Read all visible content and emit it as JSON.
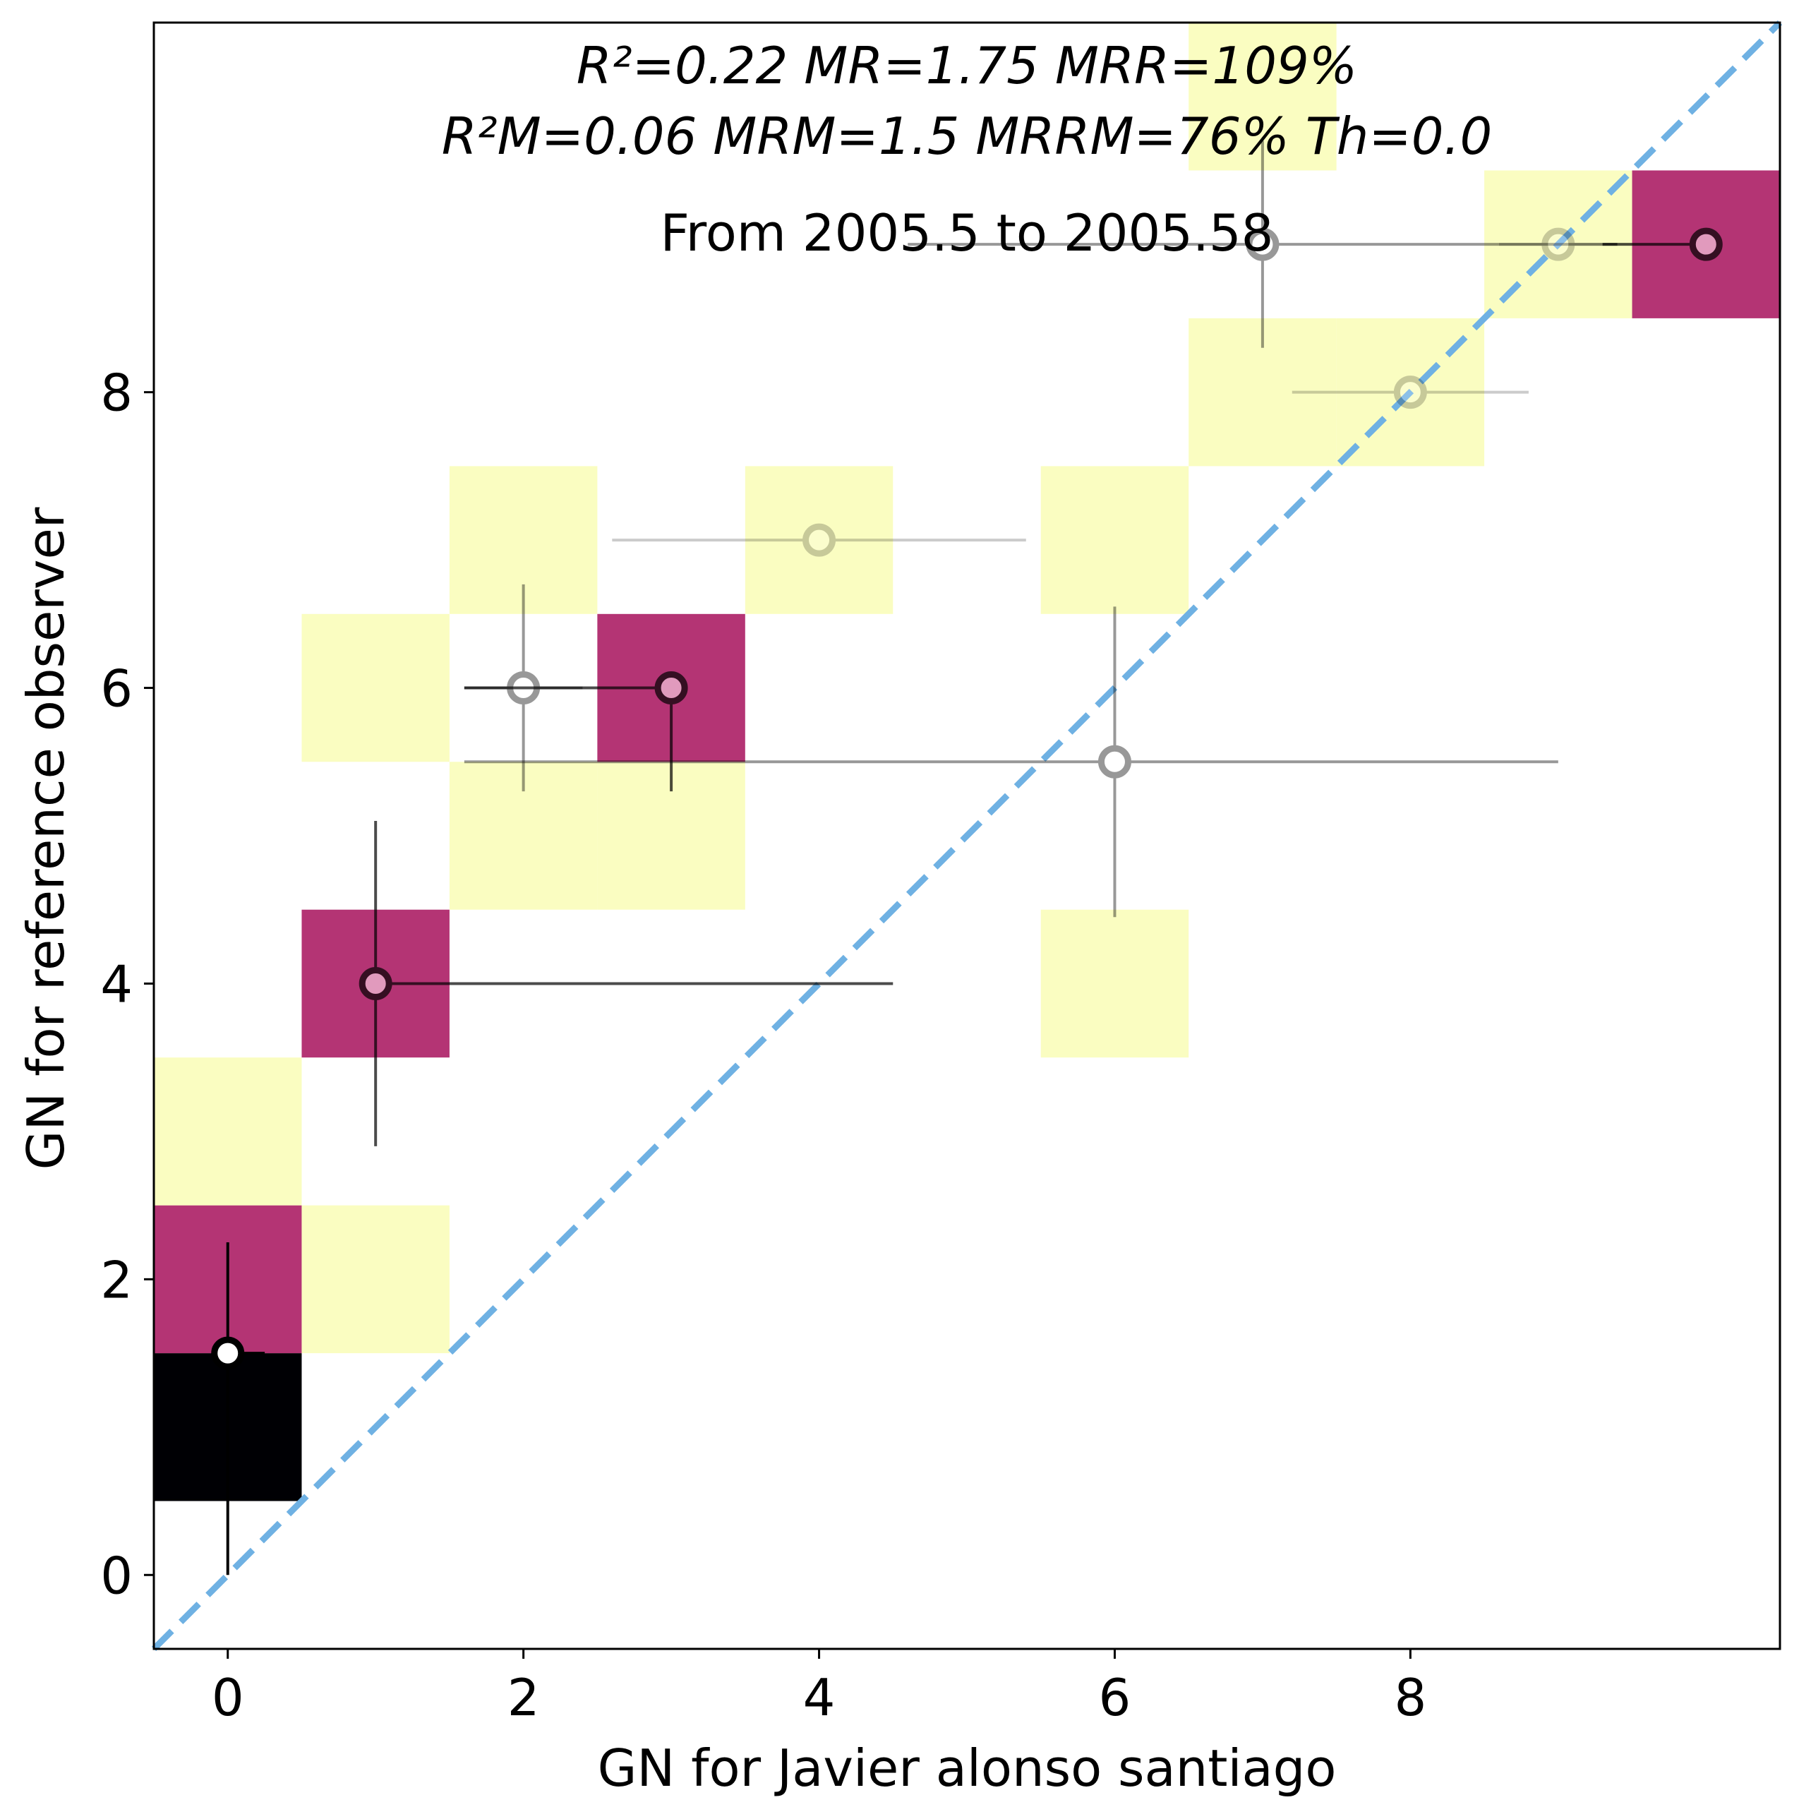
{
  "chart_data": {
    "type": "heatmap",
    "xlabel": "GN for Javier alonso santiago",
    "ylabel": "GN for reference observer",
    "xlim": [
      -0.5,
      10.5
    ],
    "ylim": [
      -0.5,
      10.5
    ],
    "x_ticks": [
      0,
      2,
      4,
      6,
      8
    ],
    "y_ticks": [
      0,
      2,
      4,
      6,
      8
    ],
    "x_tick_labels": [
      "0",
      "2",
      "4",
      "6",
      "8"
    ],
    "y_tick_labels": [
      "0",
      "2",
      "4",
      "6",
      "8"
    ],
    "annotations": {
      "stats_line1": "R²=0.22 MR=1.75 MRR=109%",
      "stats_line2": "R²M=0.06 MRM=1.5 MRRM=76% Th=0.0",
      "period": "From 2005.5  to 2005.58"
    },
    "reference_line": {
      "style": "dashed",
      "color": "#6fb1e3",
      "x": [
        -0.5,
        10.5
      ],
      "y": [
        -0.5,
        10.5
      ]
    },
    "colors": {
      "low": "#fafdc1",
      "mid": "#b43474",
      "high": "#000004"
    },
    "cells": [
      {
        "x": 0,
        "y": 1,
        "level": "high"
      },
      {
        "x": 0,
        "y": 2,
        "level": "mid"
      },
      {
        "x": 0,
        "y": 3,
        "level": "low"
      },
      {
        "x": 1,
        "y": 2,
        "level": "low"
      },
      {
        "x": 1,
        "y": 4,
        "level": "mid"
      },
      {
        "x": 1,
        "y": 6,
        "level": "low"
      },
      {
        "x": 2,
        "y": 5,
        "level": "low"
      },
      {
        "x": 2,
        "y": 7,
        "level": "low"
      },
      {
        "x": 3,
        "y": 5,
        "level": "low"
      },
      {
        "x": 3,
        "y": 6,
        "level": "mid"
      },
      {
        "x": 4,
        "y": 7,
        "level": "low"
      },
      {
        "x": 6,
        "y": 4,
        "level": "low"
      },
      {
        "x": 6,
        "y": 7,
        "level": "low"
      },
      {
        "x": 7,
        "y": 8,
        "level": "low"
      },
      {
        "x": 7,
        "y": 10,
        "level": "low"
      },
      {
        "x": 8,
        "y": 8,
        "level": "low"
      },
      {
        "x": 9,
        "y": 9,
        "level": "low"
      },
      {
        "x": 10,
        "y": 9,
        "level": "mid"
      }
    ],
    "points": [
      {
        "x": 0,
        "y": 1.5,
        "xerr": [
          0,
          0.25
        ],
        "yerr": [
          0,
          2.25
        ],
        "alpha": 1.0,
        "fill": "#ffffff"
      },
      {
        "x": 1,
        "y": 4,
        "xerr": [
          1,
          4.5
        ],
        "yerr": [
          2.9,
          5.1
        ],
        "alpha": 0.7,
        "fill": "#f4c6dc"
      },
      {
        "x": 2,
        "y": 6,
        "xerr": [
          1.6,
          2.4
        ],
        "yerr": [
          5.3,
          6.7
        ],
        "alpha": 0.4,
        "fill": "#ffffff"
      },
      {
        "x": 3,
        "y": 6,
        "xerr": [
          1.6,
          3
        ],
        "yerr": [
          5.3,
          6
        ],
        "alpha": 0.7,
        "fill": "#f4c6dc"
      },
      {
        "x": 4,
        "y": 7,
        "xerr": [
          2.6,
          5.4
        ],
        "yerr": [
          7,
          7
        ],
        "alpha": 0.2,
        "fill": "#ffffff"
      },
      {
        "x": 6,
        "y": 5.5,
        "xerr": [
          1.6,
          9
        ],
        "yerr": [
          4.45,
          6.55
        ],
        "alpha": 0.4,
        "fill": "#ffffff"
      },
      {
        "x": 7,
        "y": 9,
        "xerr": [
          4.6,
          9.4
        ],
        "yerr": [
          8.3,
          9.7
        ],
        "alpha": 0.4,
        "fill": "#ffffff"
      },
      {
        "x": 8,
        "y": 8,
        "xerr": [
          7.2,
          8.8
        ],
        "yerr": [
          8,
          8
        ],
        "alpha": 0.2,
        "fill": "#ffffff"
      },
      {
        "x": 9,
        "y": 9,
        "xerr": [
          8.6,
          9.4
        ],
        "yerr": [
          9,
          9
        ],
        "alpha": 0.2,
        "fill": "#ffffff"
      },
      {
        "x": 10,
        "y": 9,
        "xerr": [
          9.3,
          10
        ],
        "yerr": [
          9,
          9
        ],
        "alpha": 0.7,
        "fill": "#f4c6dc"
      }
    ],
    "grid": false,
    "legend": "none"
  }
}
